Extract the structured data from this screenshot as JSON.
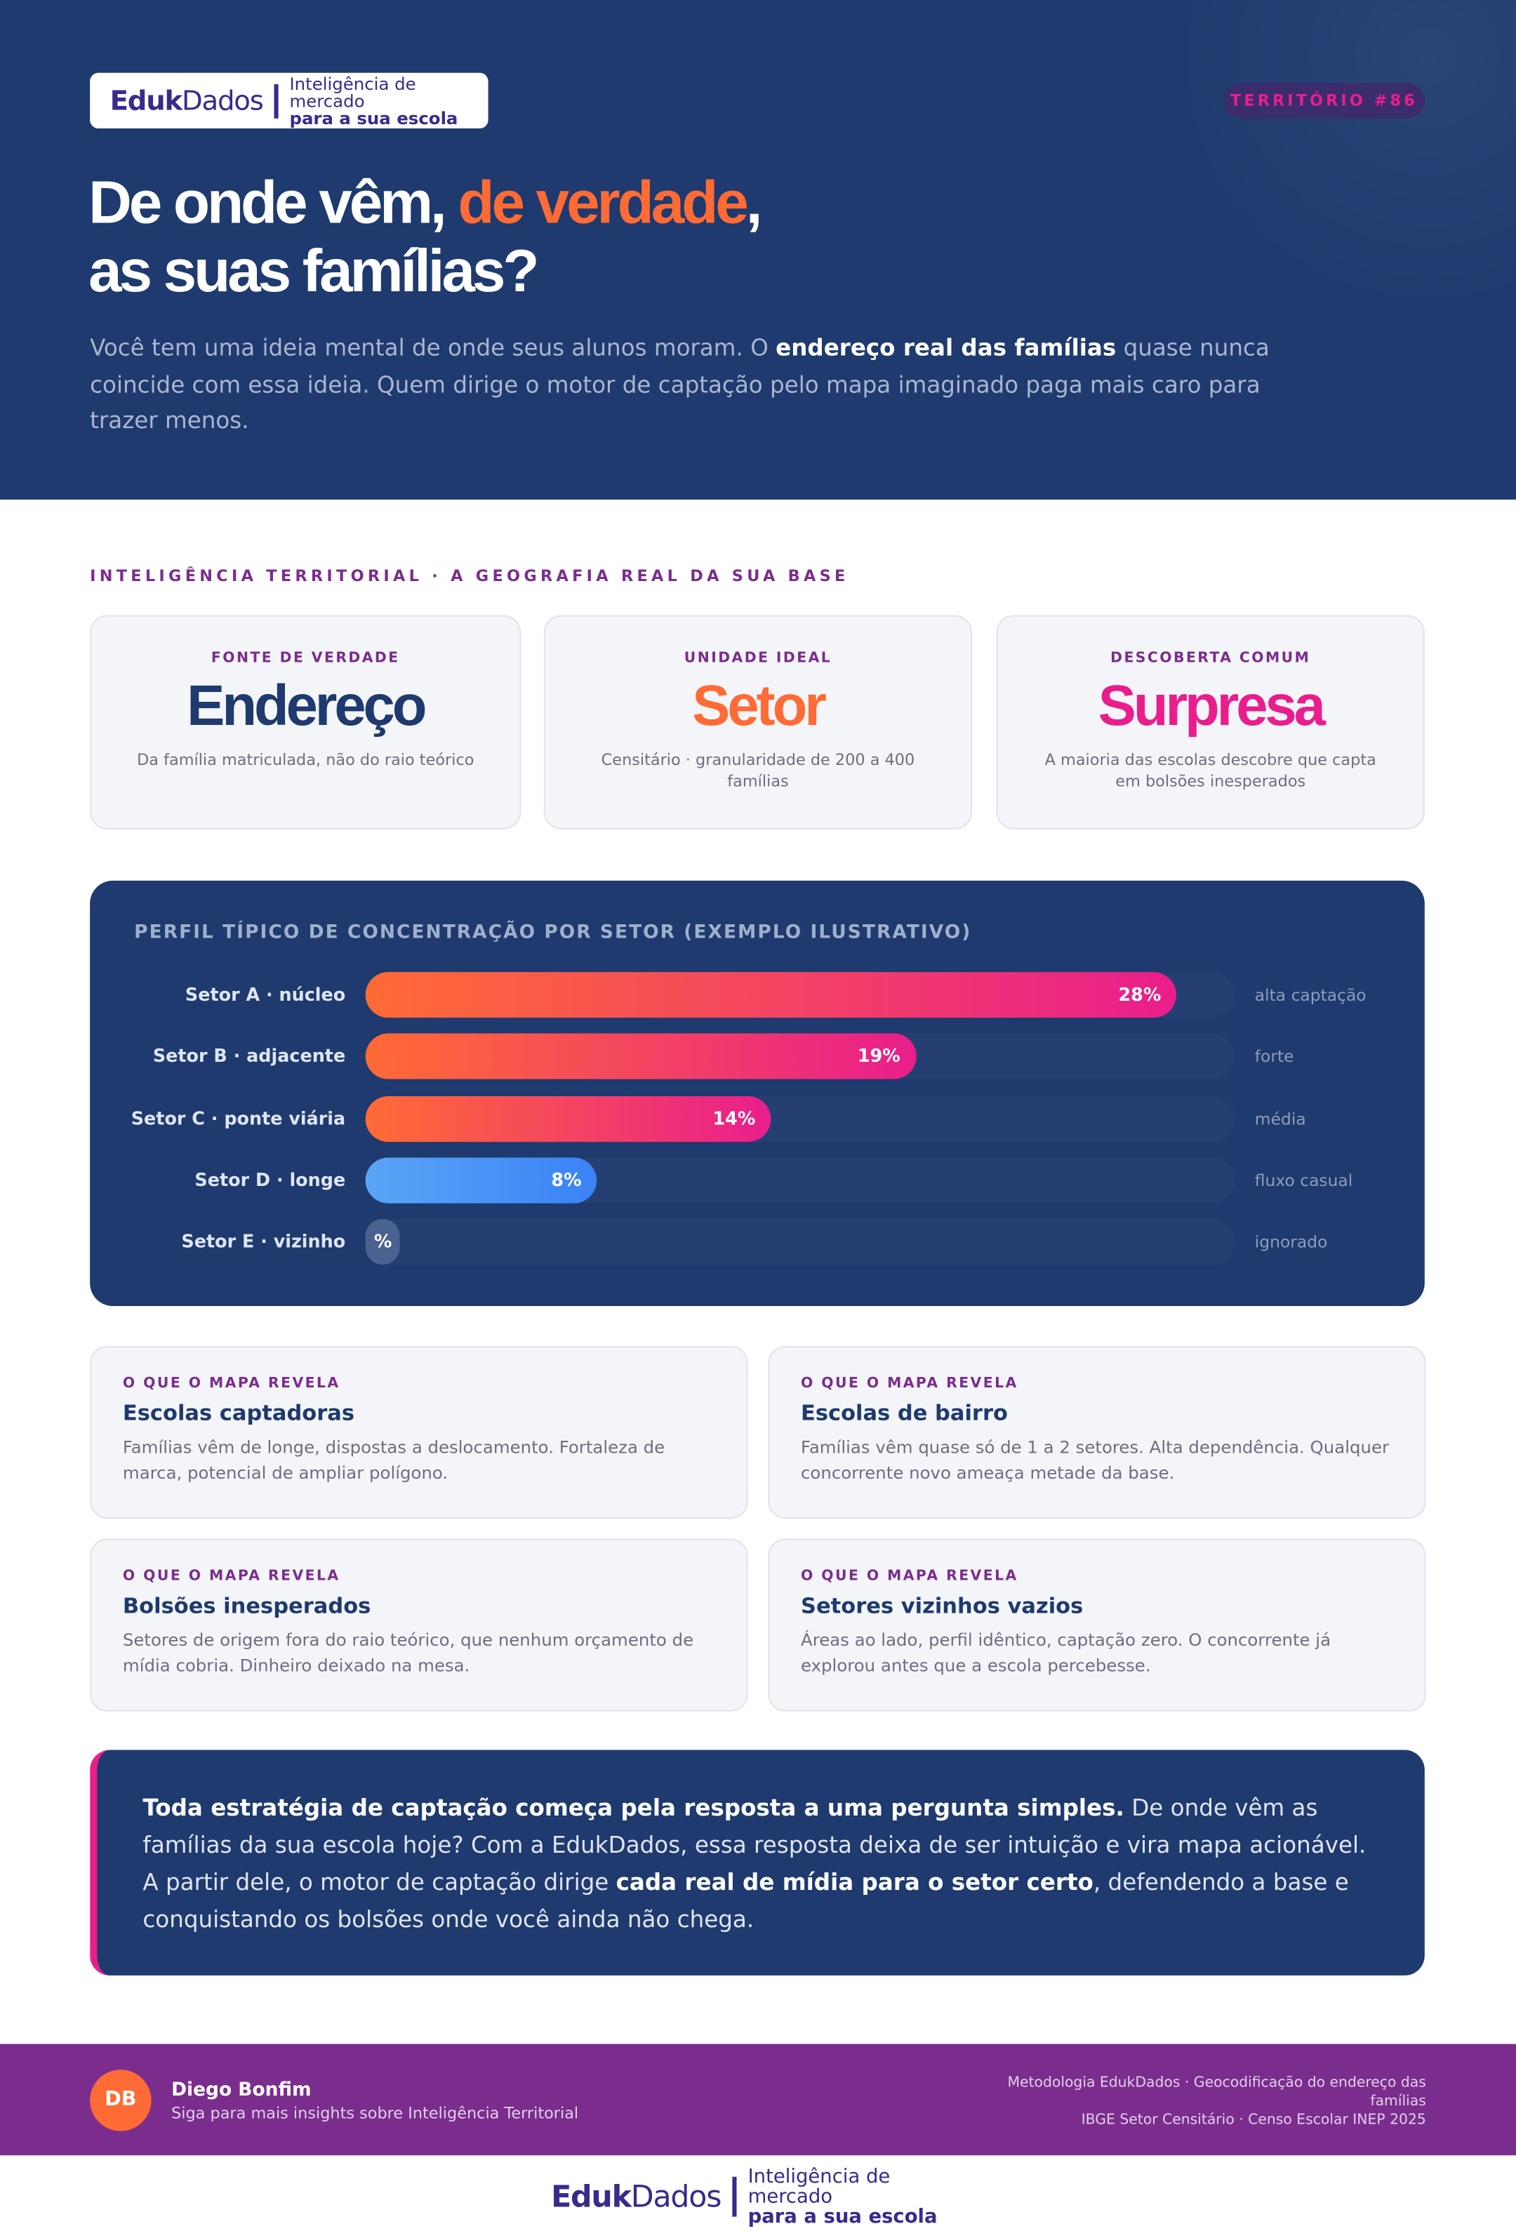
{
  "header": {
    "logo": {
      "brand_bold": "Eduk",
      "brand_light": "Dados",
      "tagline_1": "Inteligência de mercado",
      "tagline_2": "para a sua escola"
    },
    "badge": "TERRITÓRIO #86",
    "title": {
      "part_1": "De onde vêm, ",
      "highlight": "de verdade",
      "part_2": ",",
      "line_2": "as suas famílias?"
    },
    "lead": {
      "text_1": "Você tem uma ideia mental de onde seus alunos moram. O ",
      "bold": "endereço real das famílias",
      "text_2": " quase nunca coincide com essa ideia. Quem dirige o motor de captação pelo mapa imaginado paga mais caro para trazer menos."
    }
  },
  "section_label": "INTELIGÊNCIA TERRITORIAL · A GEOGRAFIA REAL DA SUA BASE",
  "stats": [
    {
      "label": "FONTE DE VERDADE",
      "value": "Endereço",
      "description": "Da família matriculada, não do raio teórico"
    },
    {
      "label": "UNIDADE IDEAL",
      "value": "Setor",
      "description": "Censitário · granularidade de 200 a 400 famílias"
    },
    {
      "label": "DESCOBERTA COMUM",
      "value": "Surpresa",
      "description": "A maioria das escolas descobre que capta em bolsões inesperados"
    }
  ],
  "chart_data": {
    "type": "bar",
    "orientation": "horizontal",
    "title": "PERFIL TÍPICO DE CONCENTRAÇÃO POR SETOR (EXEMPLO ILUSTRATIVO)",
    "categories": [
      "Setor A · núcleo",
      "Setor B · adjacente",
      "Setor C · ponte viária",
      "Setor D · longe",
      "Setor E · vizinho"
    ],
    "values": [
      28,
      19,
      14,
      8,
      null
    ],
    "value_labels": [
      "28%",
      "19%",
      "14%",
      "8%",
      "%"
    ],
    "notes": [
      "alta captação",
      "forte",
      "média",
      "fluxo casual",
      "ignorado"
    ],
    "colors": [
      [
        "#ff6b35",
        "#e91e8c"
      ],
      [
        "#ff6b35",
        "#e91e8c"
      ],
      [
        "#ff6b35",
        "#e91e8c"
      ],
      [
        "#5aa5f7",
        "#3b82f6"
      ],
      [
        "#4a6290",
        "#4a6290"
      ]
    ],
    "xlim": [
      0,
      30
    ]
  },
  "insights": [
    {
      "kicker": "O QUE O MAPA REVELA",
      "title": "Escolas captadoras",
      "text": "Famílias vêm de longe, dispostas a deslocamento. Fortaleza de marca, potencial de ampliar polígono."
    },
    {
      "kicker": "O QUE O MAPA REVELA",
      "title": "Escolas de bairro",
      "text": "Famílias vêm quase só de 1 a 2 setores. Alta dependência. Qualquer concorrente novo ameaça metade da base."
    },
    {
      "kicker": "O QUE O MAPA REVELA",
      "title": "Bolsões inesperados",
      "text": "Setores de origem fora do raio teórico, que nenhum orçamento de mídia cobria. Dinheiro deixado na mesa."
    },
    {
      "kicker": "O QUE O MAPA REVELA",
      "title": "Setores vizinhos vazios",
      "text": "Áreas ao lado, perfil idêntico, captação zero. O concorrente já explorou antes que a escola percebesse."
    }
  ],
  "quote": {
    "bold_1": "Toda estratégia de captação começa pela resposta a uma pergunta simples.",
    "text_1": " De onde vêm as famílias da sua escola hoje? Com a EdukDados, essa resposta deixa de ser intuição e vira mapa acionável. A partir dele, o motor de captação dirige ",
    "bold_2": "cada real de mídia para o setor certo",
    "text_2": ", defendendo a base e conquistando os bolsões onde você ainda não chega."
  },
  "footer": {
    "initials": "DB",
    "name": "Diego Bonfim",
    "subtitle": "Siga para mais insights sobre Inteligência Territorial",
    "methodology_1": "Metodologia EdukDados · Geocodificação do endereço das famílias",
    "methodology_2": "IBGE Setor Censitário · Censo Escolar INEP 2025"
  },
  "bottom_logo": {
    "brand_bold": "Eduk",
    "brand_light": "Dados",
    "tagline_1": "Inteligência de mercado",
    "tagline_2": "para a sua escola"
  }
}
